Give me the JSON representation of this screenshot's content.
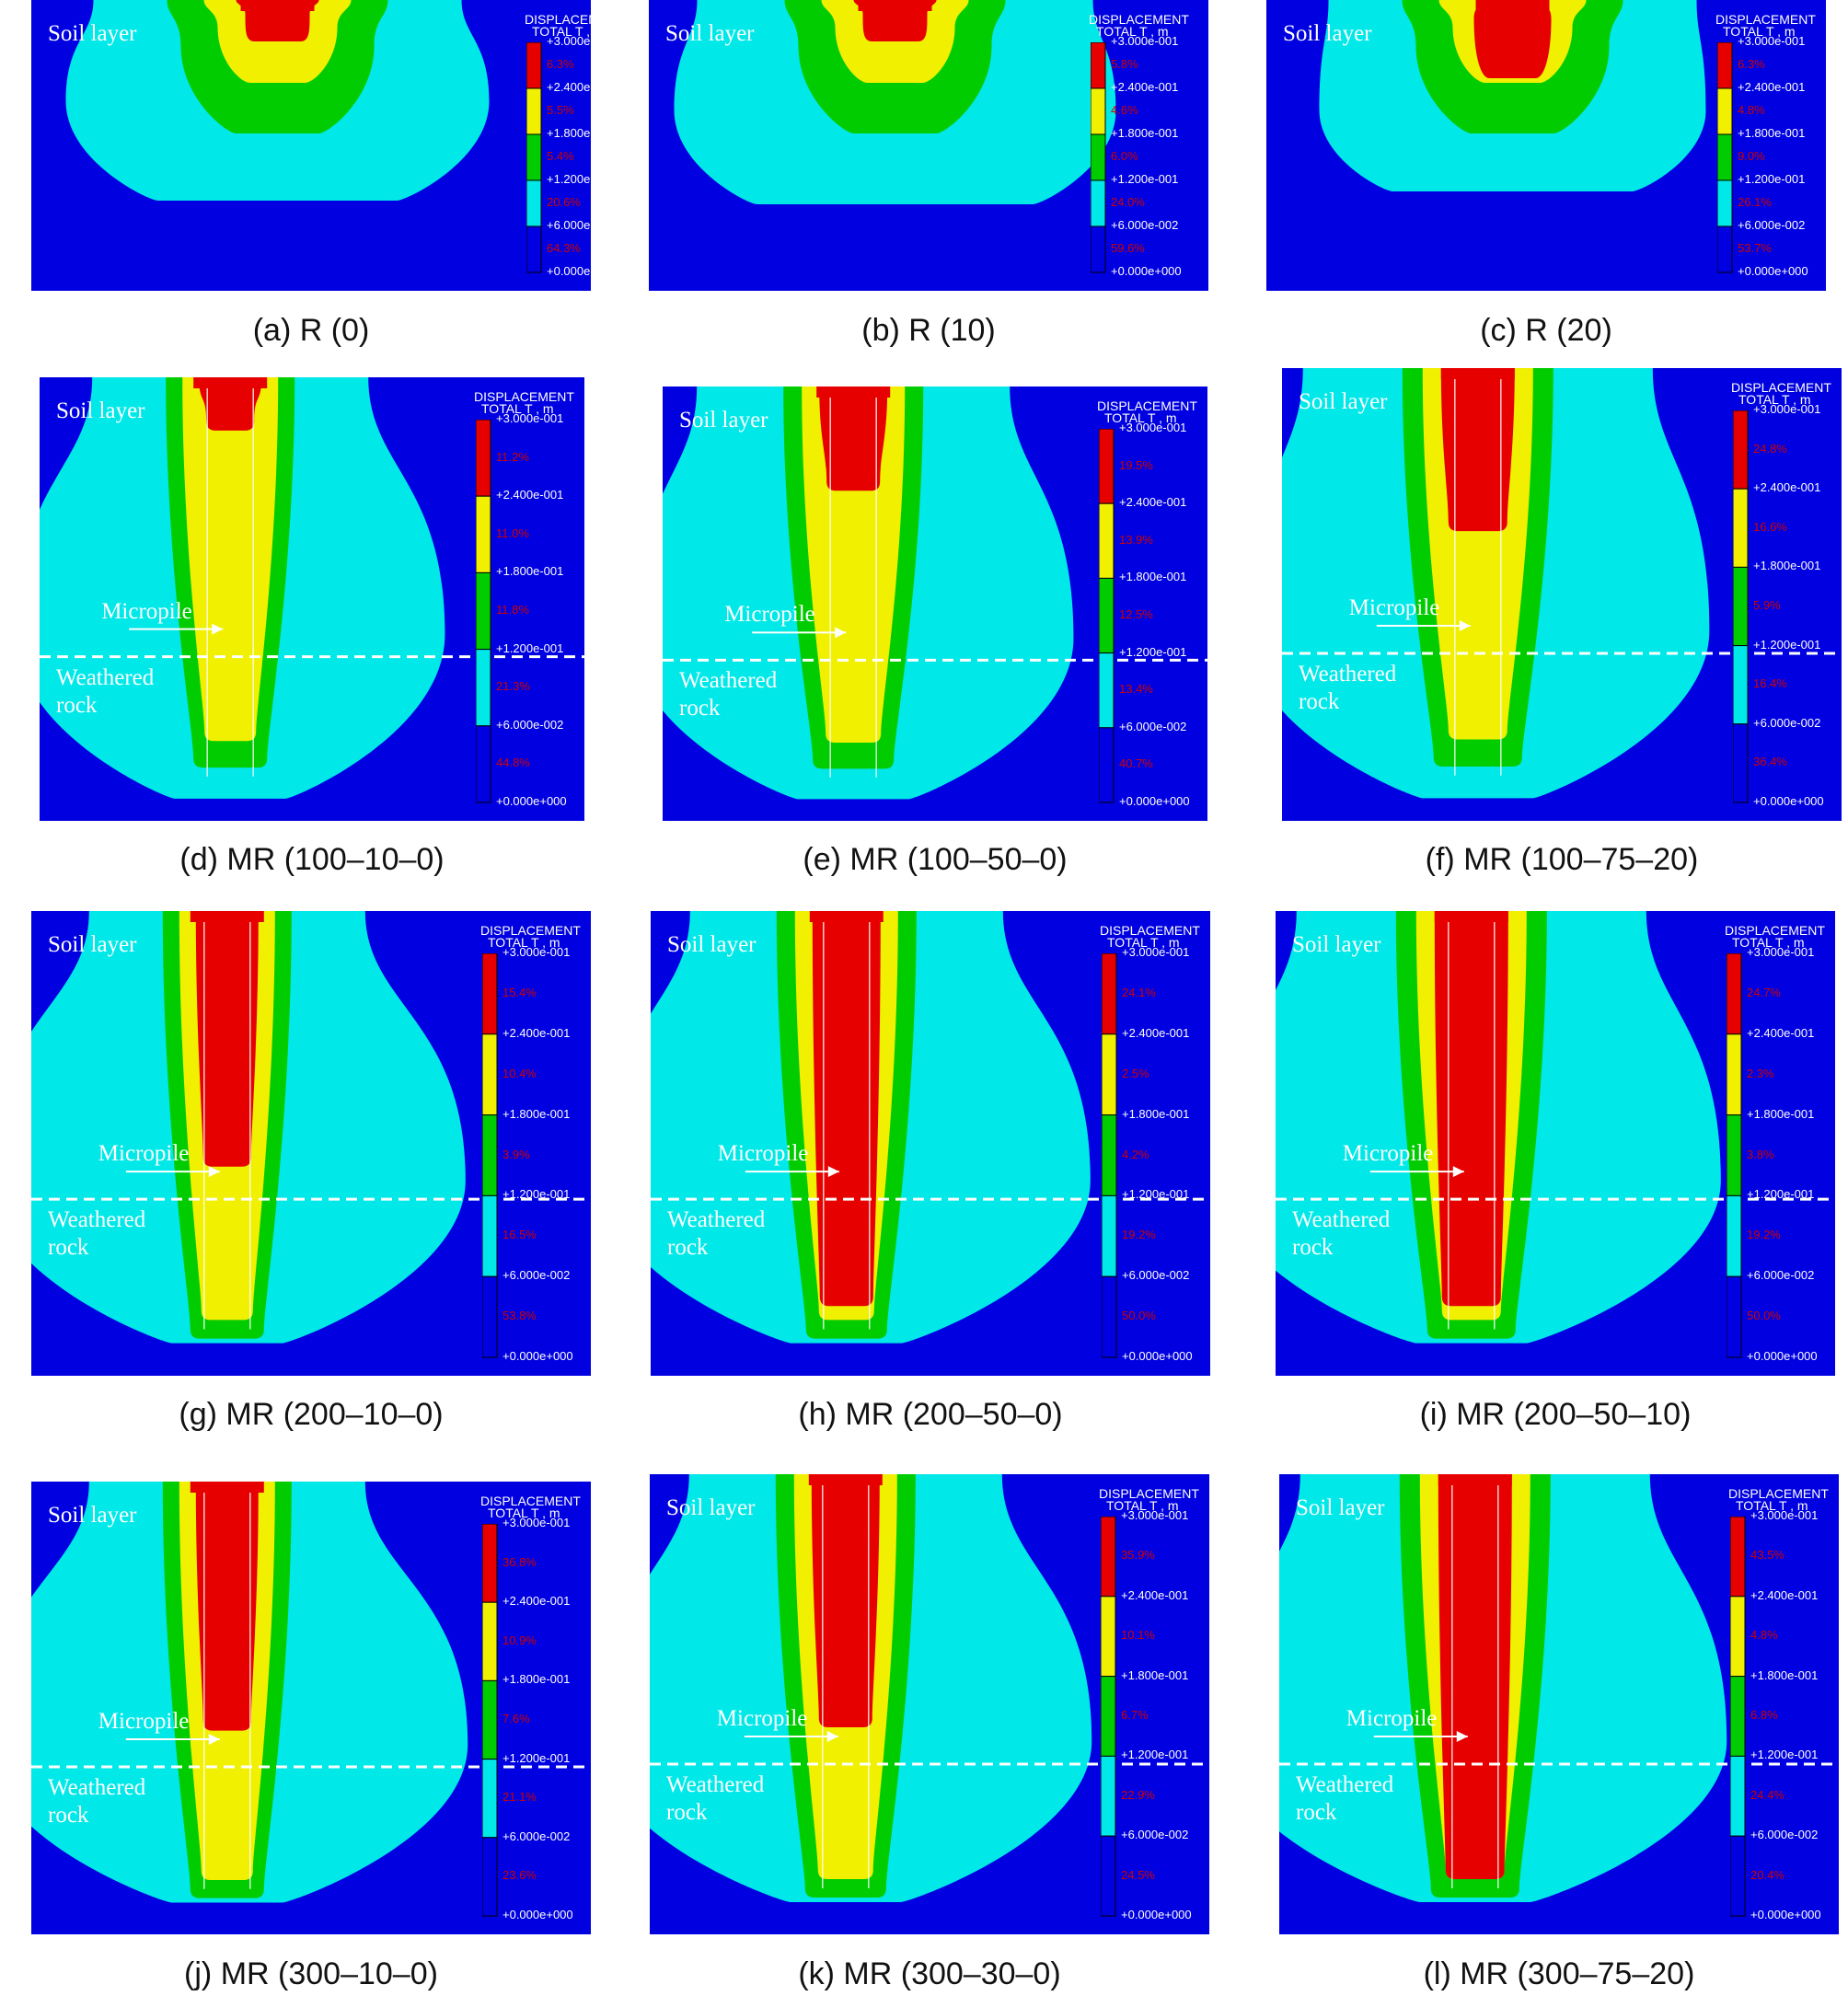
{
  "legend": {
    "title_line1": "DISPLACEMENT",
    "title_line2": "TOTAL T , m",
    "ticks": [
      "+3.000e-001",
      "+2.400e-001",
      "+1.800e-001",
      "+1.200e-001",
      "+6.000e-002",
      "+0.000e+000"
    ],
    "colors": [
      "#e60000",
      "#f0f000",
      "#00cc00",
      "#00e8e8",
      "#0000e0"
    ]
  },
  "labels": {
    "soil": "Soil layer",
    "rock": "Weathered rock",
    "micropile": "Micropile"
  },
  "panels": [
    {
      "caption": "(a)  R  (0)",
      "percentages": [
        "6.3%",
        "5.5%",
        "5.4%",
        "20.6%",
        "64.3%"
      ],
      "micropile": false
    },
    {
      "caption": "(b)  R  (10)",
      "percentages": [
        "5.8%",
        "4.6%",
        "6.0%",
        "24.0%",
        "59.6%"
      ],
      "micropile": false
    },
    {
      "caption": "(c)  R  (20)",
      "percentages": [
        "6.3%",
        "4.8%",
        "9.0%",
        "26.1%",
        "53.7%"
      ],
      "micropile": false
    },
    {
      "caption": "(d)  MR  (100–10–0)",
      "percentages": [
        "11.2%",
        "11.0%",
        "11.8%",
        "21.3%",
        "44.8%"
      ],
      "micropile": true
    },
    {
      "caption": "(e)  MR  (100–50–0)",
      "percentages": [
        "19.5%",
        "13.9%",
        "12.5%",
        "13.4%",
        "40.7%"
      ],
      "micropile": true
    },
    {
      "caption": "(f)  MR  (100–75–20)",
      "percentages": [
        "24.8%",
        "16.6%",
        "5.9%",
        "16.4%",
        "36.4%"
      ],
      "micropile": true
    },
    {
      "caption": "(g)  MR  (200–10–0)",
      "percentages": [
        "15.4%",
        "10.4%",
        "3.9%",
        "16.5%",
        "53.8%"
      ],
      "micropile": true
    },
    {
      "caption": "(h)  MR  (200–50–0)",
      "percentages": [
        "24.1%",
        "2.5%",
        "4.2%",
        "19.2%",
        "50.0%"
      ],
      "micropile": true
    },
    {
      "caption": "(i)  MR  (200–50–10)",
      "percentages": [
        "24.7%",
        "2.3%",
        "3.8%",
        "19.2%",
        "50.0%"
      ],
      "micropile": true
    },
    {
      "caption": "(j)  MR  (300–10–0)",
      "percentages": [
        "36.8%",
        "10.9%",
        "7.6%",
        "21.1%",
        "23.6%"
      ],
      "micropile": true
    },
    {
      "caption": "(k)  MR  (300–30–0)",
      "percentages": [
        "35.9%",
        "10.1%",
        "6.7%",
        "22.9%",
        "24.5%"
      ],
      "micropile": true
    },
    {
      "caption": "(l)  MR  (300–75–20)",
      "percentages": [
        "43.5%",
        "4.8%",
        "6.8%",
        "24.4%",
        "20.4%"
      ],
      "micropile": true
    }
  ]
}
